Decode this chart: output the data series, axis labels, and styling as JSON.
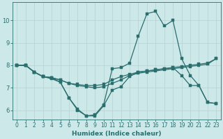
{
  "background_color": "#cde8e8",
  "grid_color": "#b8d4d4",
  "line_color": "#2a6e6e",
  "xlabel": "Humidex (Indice chaleur)",
  "xlim": [
    -0.5,
    23.5
  ],
  "ylim": [
    5.6,
    10.8
  ],
  "yticks": [
    6,
    7,
    8,
    9,
    10
  ],
  "xticks": [
    0,
    1,
    2,
    3,
    4,
    5,
    6,
    7,
    8,
    9,
    10,
    11,
    12,
    13,
    14,
    15,
    16,
    17,
    18,
    19,
    20,
    21,
    22,
    23
  ],
  "line1_x": [
    0,
    1,
    2,
    3,
    4,
    5,
    6,
    7,
    8,
    9,
    10,
    11,
    12,
    13,
    14,
    15,
    16,
    17,
    18,
    19,
    20,
    21,
    22,
    23
  ],
  "line1_y": [
    8.0,
    8.0,
    7.7,
    7.5,
    7.45,
    7.25,
    6.55,
    6.05,
    5.75,
    5.8,
    6.25,
    7.85,
    7.9,
    8.1,
    9.3,
    10.3,
    10.4,
    9.75,
    10.0,
    8.3,
    7.55,
    7.1,
    6.35,
    6.3
  ],
  "line2_x": [
    0,
    1,
    2,
    3,
    4,
    5,
    6,
    7,
    8,
    9,
    10,
    11,
    12,
    13,
    14,
    15,
    16,
    17,
    18,
    19,
    20,
    21,
    22,
    23
  ],
  "line2_y": [
    8.0,
    8.0,
    7.7,
    7.5,
    7.45,
    7.35,
    7.2,
    7.15,
    7.1,
    7.1,
    7.15,
    7.35,
    7.5,
    7.6,
    7.7,
    7.75,
    7.8,
    7.85,
    7.9,
    7.95,
    8.0,
    8.05,
    8.1,
    8.3
  ],
  "line3_x": [
    0,
    1,
    2,
    3,
    4,
    5,
    6,
    7,
    8,
    9,
    10,
    11,
    12,
    13,
    14,
    15,
    16,
    17,
    18,
    19,
    20,
    21,
    22,
    23
  ],
  "line3_y": [
    8.0,
    8.0,
    7.7,
    7.5,
    7.45,
    7.35,
    7.2,
    7.1,
    7.05,
    7.0,
    7.05,
    7.2,
    7.35,
    7.55,
    7.65,
    7.7,
    7.75,
    7.8,
    7.85,
    7.9,
    7.95,
    8.0,
    8.05,
    8.3
  ],
  "line4_x": [
    0,
    1,
    2,
    3,
    4,
    5,
    6,
    7,
    8,
    9,
    10,
    11,
    12,
    13,
    14,
    15,
    16,
    17,
    18,
    19,
    20,
    21,
    22,
    23
  ],
  "line4_y": [
    8.0,
    8.0,
    7.7,
    7.5,
    7.4,
    7.25,
    6.55,
    6.0,
    5.75,
    5.75,
    6.2,
    6.9,
    7.05,
    7.5,
    7.7,
    7.75,
    7.8,
    7.85,
    7.9,
    7.55,
    7.1,
    7.1,
    6.35,
    6.3
  ]
}
